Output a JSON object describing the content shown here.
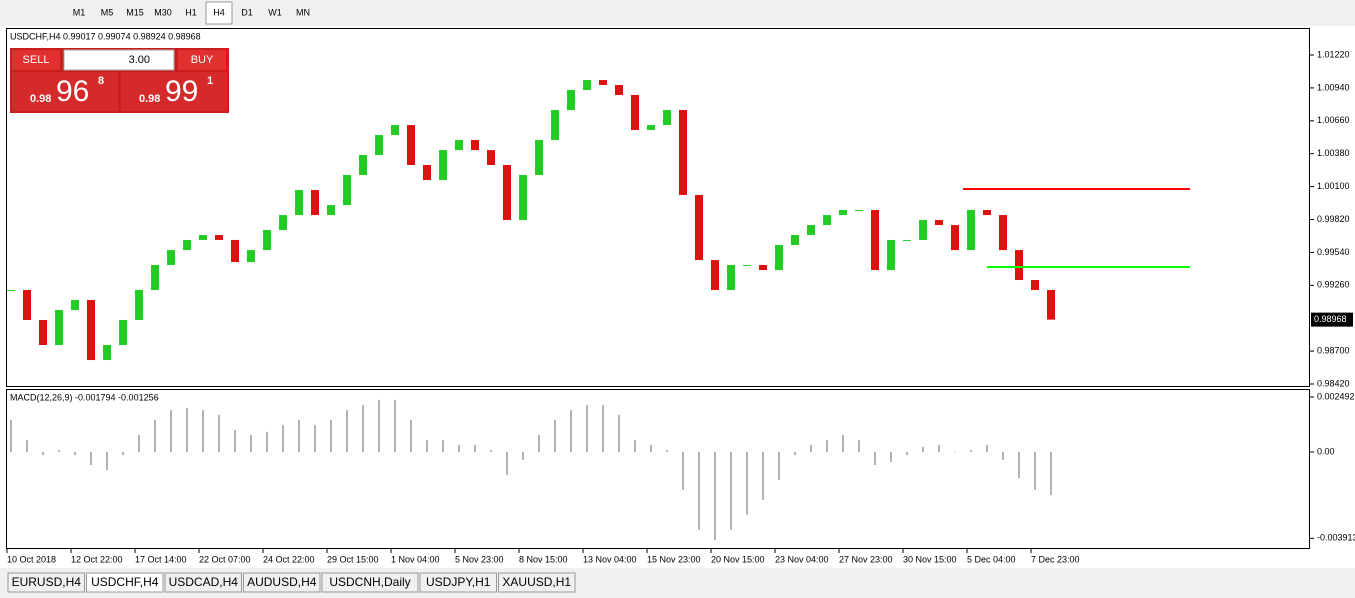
{
  "toolbar": {
    "timeframes": [
      "M1",
      "M5",
      "M15",
      "M30",
      "H1",
      "H4",
      "D1",
      "W1",
      "MN"
    ]
  },
  "symbol_header": "USDCHF,H4  0.99017 0.99074 0.98924 0.98968",
  "trade_panel": {
    "sell": "SELL",
    "buy": "BUY",
    "volume": "3.00",
    "sell_price": {
      "big": "0.98",
      "main": "96",
      "small": "8"
    },
    "buy_price": {
      "big": "0.98",
      "main": "99",
      "small": "1"
    }
  },
  "macd_label": "MACD(12,26,9) -0.001794 -0.001256",
  "tabs": [
    "EURUSD,H4",
    "USDCHF,H4",
    "USDCAD,H4",
    "AUDUSD,H4",
    "USDCNH,Daily",
    "USDJPY,H1",
    "XAUUSD,H1"
  ],
  "chart_data": [
    {
      "type": "candlestick",
      "up_color": "#22cc22",
      "down_color": "#e01010",
      "categories": [
        "10 Oct 2018",
        null,
        null,
        null,
        "12 Oct 22:00",
        null,
        null,
        null,
        "17 Oct 14:00",
        null,
        null,
        null,
        "22 Oct 07:00",
        null,
        null,
        null,
        "24 Oct 22:00",
        null,
        null,
        null,
        "29 Oct 15:00",
        null,
        null,
        null,
        "1 Nov 04:00",
        null,
        null,
        null,
        "5 Nov 23:00",
        null,
        null,
        null,
        "8 Nov 15:00",
        null,
        null,
        null,
        "13 Nov 04:00",
        null,
        null,
        null,
        "15 Nov 23:00",
        null,
        null,
        null,
        "20 Nov 15:00",
        null,
        null,
        null,
        "23 Nov 04:00",
        null,
        null,
        null,
        "27 Nov 23:00",
        null,
        null,
        null,
        "30 Nov 15:00",
        null,
        null,
        null,
        "5 Dec 04:00",
        null,
        null,
        null,
        "7 Dec 23:00",
        null
      ],
      "values": [
        0.9922,
        0.98965,
        0.98752,
        0.9905,
        0.99135,
        0.98624,
        0.98752,
        0.98965,
        0.9922,
        0.99433,
        0.9956,
        0.99646,
        0.99688,
        0.99646,
        0.99458,
        0.9956,
        0.99731,
        0.99858,
        1.00071,
        0.99858,
        0.99943,
        1.00199,
        1.00369,
        1.00539,
        1.00624,
        1.00284,
        1.00156,
        1.00411,
        1.00497,
        1.00411,
        1.00284,
        0.99816,
        1.00199,
        1.00497,
        1.00752,
        1.00922,
        1.01007,
        1.00965,
        1.0088,
        1.00582,
        1.00624,
        1.00752,
        1.00029,
        0.99475,
        0.9922,
        0.99433,
        0.99433,
        0.9939,
        0.99603,
        0.99688,
        0.99773,
        0.99858,
        0.99901,
        0.99901,
        0.9939,
        0.99646,
        0.99646,
        0.99816,
        0.99773,
        0.9956,
        0.99901,
        0.99858,
        0.9956,
        0.99305,
        0.9922,
        0.98968
      ],
      "ylim": [
        0.98403,
        1.01433
      ],
      "yticks": [
        {
          "value": 1.0122,
          "label": "1.01220"
        },
        {
          "value": 1.0094,
          "label": "1.00940"
        },
        {
          "value": 1.0066,
          "label": "1.00660"
        },
        {
          "value": 1.0038,
          "label": "1.00380"
        },
        {
          "value": 1.001,
          "label": "1.00100"
        },
        {
          "value": 0.9982,
          "label": "0.99820"
        },
        {
          "value": 0.9954,
          "label": "0.99540"
        },
        {
          "value": 0.9926,
          "label": "0.99260"
        },
        {
          "value": 0.987,
          "label": "0.98700"
        },
        {
          "value": 0.9842,
          "label": "0.98420"
        }
      ],
      "current_price": {
        "value": 0.98968,
        "label": "0.98968"
      },
      "hlines": [
        {
          "value": 1.0008,
          "color": "#ff0000"
        },
        {
          "value": 0.99416,
          "color": "#00ff00"
        }
      ]
    },
    {
      "type": "bar",
      "color": "#b4b4b4",
      "values": [
        0.00145,
        0.00054,
        -0.00014,
        9e-05,
        -0.00014,
        -0.00059,
        -0.00082,
        -0.00014,
        0.00077,
        0.00145,
        0.0019,
        0.00199,
        0.0019,
        0.00168,
        0.001,
        0.00077,
        0.00091,
        0.00122,
        0.00145,
        0.00122,
        0.00145,
        0.0019,
        0.00213,
        0.00236,
        0.00236,
        0.00145,
        0.00054,
        0.00054,
        0.00032,
        0.00032,
        9e-05,
        -0.00104,
        -0.00036,
        0.00077,
        0.00145,
        0.0019,
        0.00213,
        0.00213,
        0.00168,
        0.00054,
        0.00032,
        9e-05,
        -0.00172,
        -0.00353,
        -0.00399,
        -0.00353,
        -0.00285,
        -0.00217,
        -0.00127,
        -0.00014,
        0.00032,
        0.00054,
        0.00077,
        0.00054,
        -0.00059,
        -0.00045,
        -0.00014,
        0.00023,
        0.00032,
        0,
        9e-05,
        0.00032,
        -0.00036,
        -0.00118,
        -0.00172,
        -0.00195
      ],
      "ylim": [
        -0.00435,
        0.00281
      ],
      "yticks": [
        0.002492,
        {
          "value": 0,
          "label": "0.00"
        },
        -0.003913
      ]
    }
  ]
}
